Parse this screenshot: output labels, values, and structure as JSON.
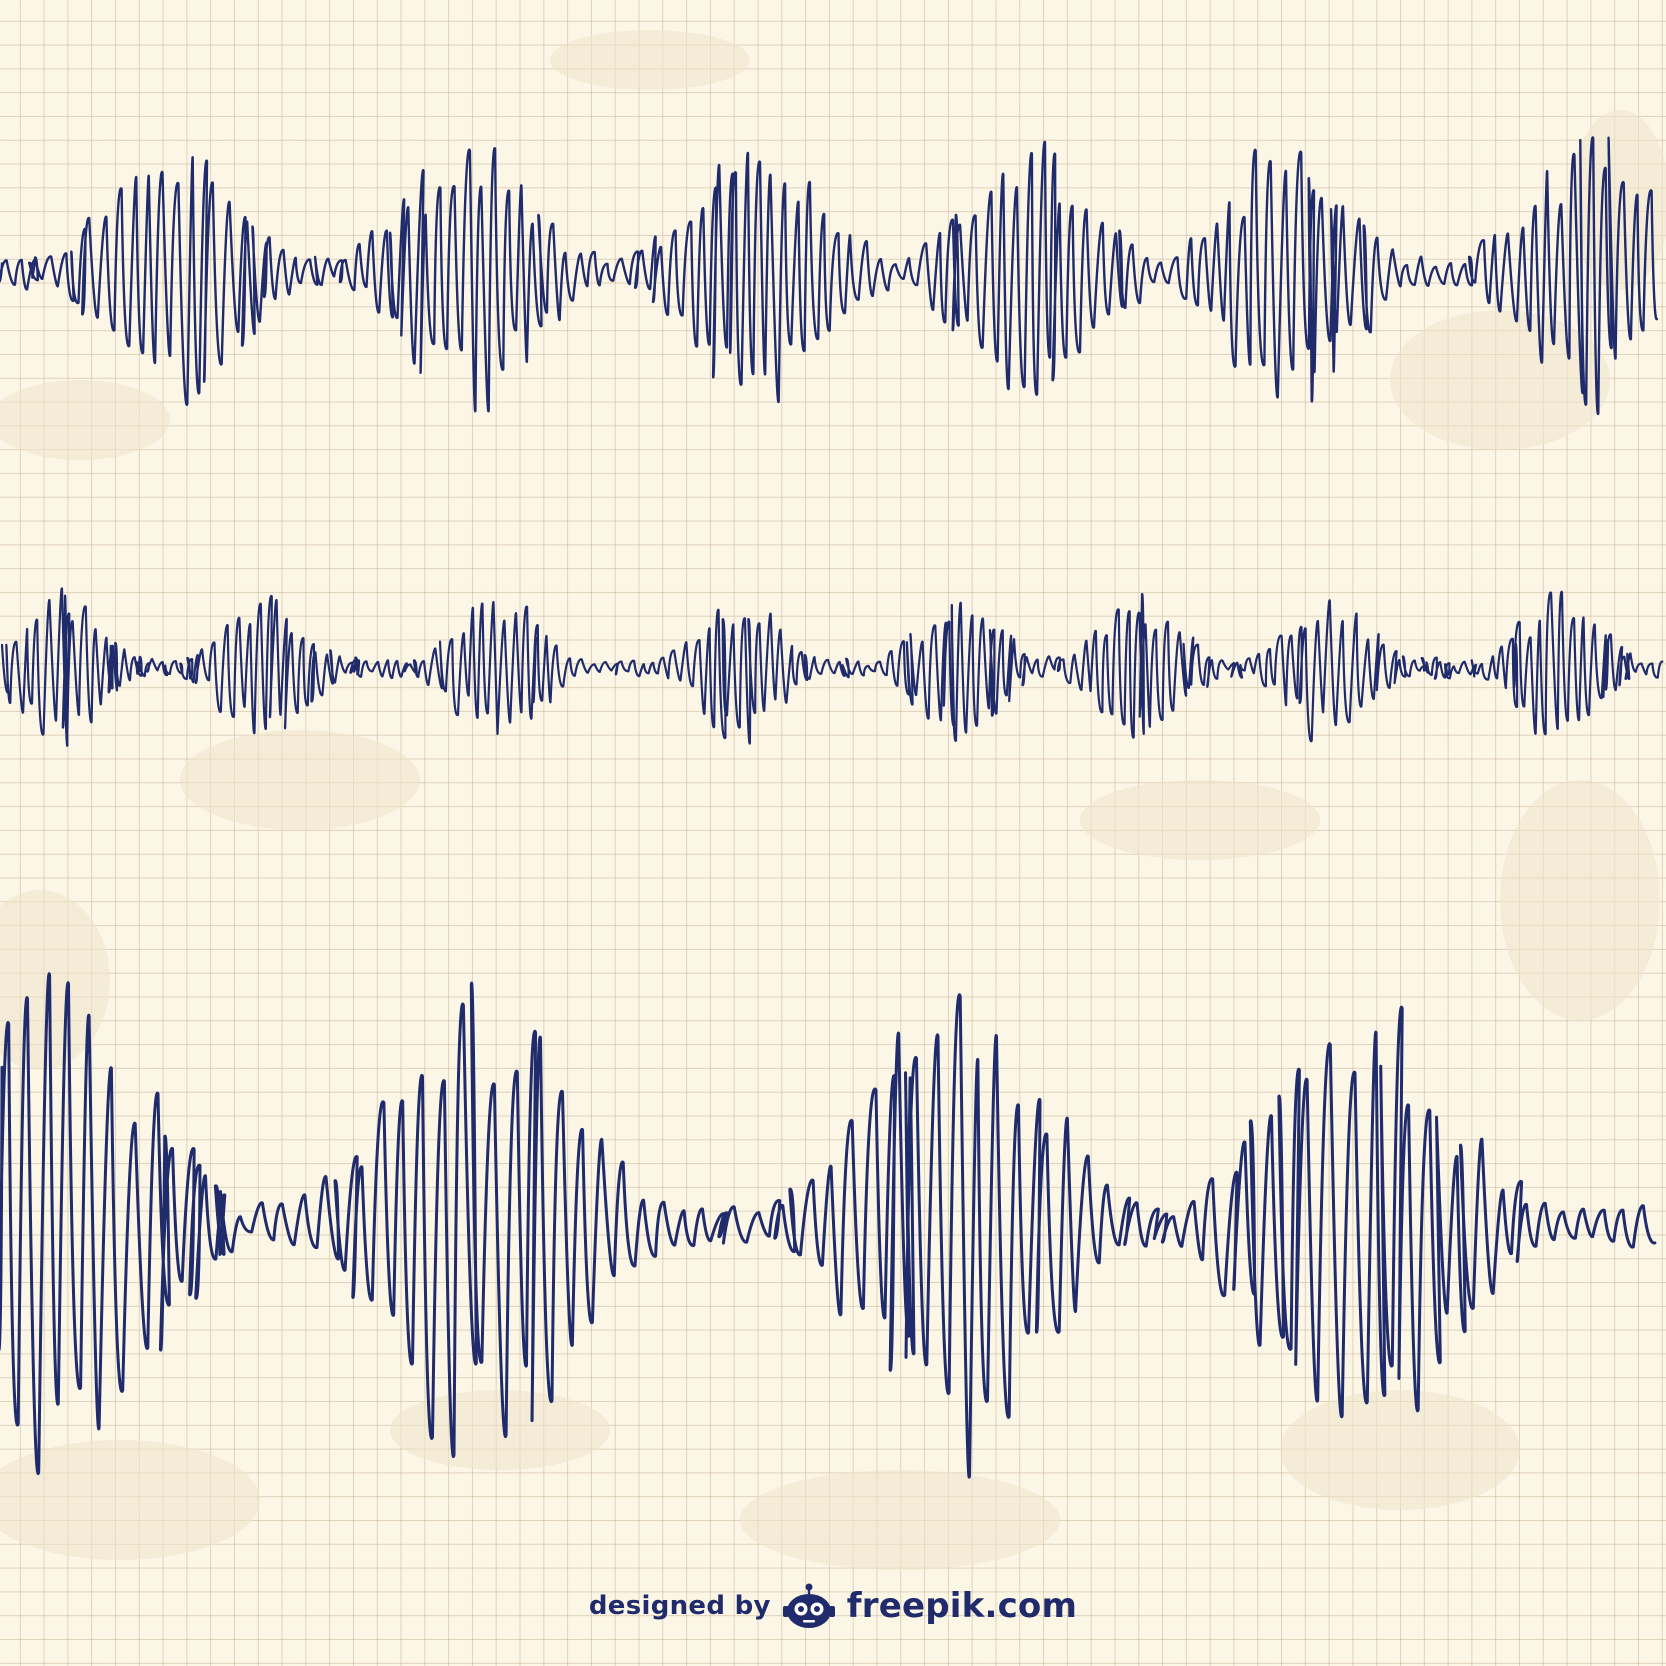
{
  "background": {
    "paper_color": "#fcf6e7",
    "grid_line_color": "#c8b496",
    "stain_color": "#efe4cc"
  },
  "waveforms": {
    "ink_color": "#1f2b6b",
    "row_count": 3
  },
  "credit": {
    "designed_by": "designed by",
    "brand": "freepik.com",
    "logo_icon": "freepik-robot-logo-icon",
    "color": "#1f2b6b"
  }
}
